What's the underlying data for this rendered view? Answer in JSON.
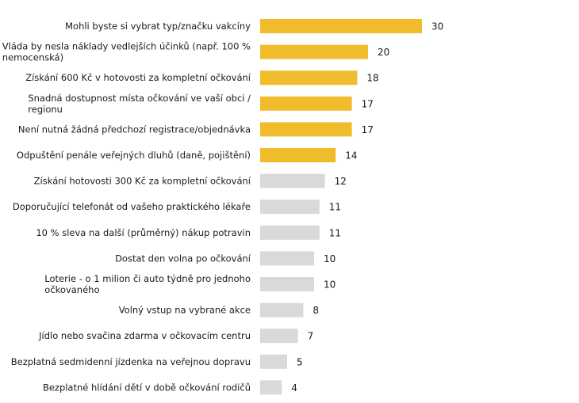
{
  "chart_data": {
    "type": "bar",
    "orientation": "horizontal",
    "categories": [
      [
        "Mohli byste si vybrat typ/značku vakcíny"
      ],
      [
        "Vláda by nesla náklady vedlejších účinků (např. 100 %",
        "nemocenská)"
      ],
      [
        "Získání 600 Kč v hotovosti za kompletní očkování"
      ],
      [
        "Snadná dostupnost místa očkování ve vaší obci /",
        "regionu"
      ],
      [
        "Není nutná žádná předchozí registrace/objednávka"
      ],
      [
        "Odpuštění penále veřejných dluhů (daně, pojištění)"
      ],
      [
        "Získání hotovosti 300 Kč za kompletní očkování"
      ],
      [
        "Doporučující telefonát od vašeho praktického lékaře"
      ],
      [
        "10 % sleva na další (průměrný) nákup potravin"
      ],
      [
        "Dostat den volna po očkování"
      ],
      [
        "Loterie - o 1 milion či auto týdně pro jednoho",
        "očkovaného"
      ],
      [
        "Volný vstup na vybrané akce"
      ],
      [
        "Jídlo nebo svačina zdarma v očkovacím centru"
      ],
      [
        "Bezplatná sedmidenní jízdenka na veřejnou dopravu"
      ],
      [
        "Bezplatné hlídání dětí v době očkování rodičů"
      ]
    ],
    "values": [
      30,
      20,
      18,
      17,
      17,
      14,
      12,
      11,
      11,
      10,
      10,
      8,
      7,
      5,
      4
    ],
    "highlight": [
      true,
      true,
      true,
      true,
      true,
      true,
      false,
      false,
      false,
      false,
      false,
      false,
      false,
      false,
      false
    ],
    "colors": {
      "highlight": "#f0bc2c",
      "default": "#d9d9d9"
    },
    "xlim": [
      0,
      30
    ],
    "title": "",
    "xlabel": "",
    "ylabel": "",
    "grid": false,
    "legend": "none"
  }
}
